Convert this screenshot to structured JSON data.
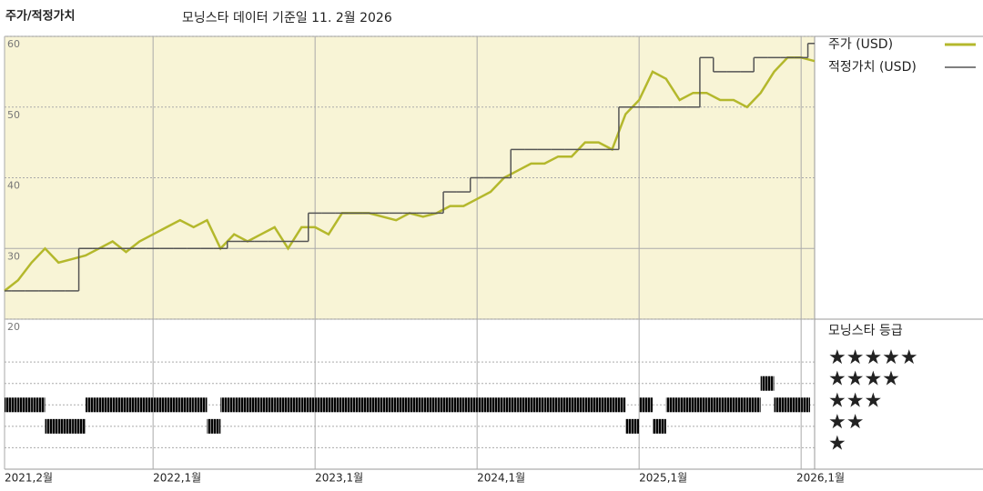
{
  "title": "주가/적정가치",
  "subtitle": "모닝스타 데이터 기준일 11. 2월 2026",
  "chart_data": [
    {
      "type": "line",
      "x": [
        "2021-02",
        "2021-03",
        "2021-04",
        "2021-05",
        "2021-06",
        "2021-07",
        "2021-08",
        "2021-09",
        "2021-10",
        "2021-11",
        "2021-12",
        "2022-01",
        "2022-02",
        "2022-03",
        "2022-04",
        "2022-05",
        "2022-06",
        "2022-07",
        "2022-08",
        "2022-09",
        "2022-10",
        "2022-11",
        "2022-12",
        "2023-01",
        "2023-02",
        "2023-03",
        "2023-04",
        "2023-05",
        "2023-06",
        "2023-07",
        "2023-08",
        "2023-09",
        "2023-10",
        "2023-11",
        "2023-12",
        "2024-01",
        "2024-02",
        "2024-03",
        "2024-04",
        "2024-05",
        "2024-06",
        "2024-07",
        "2024-08",
        "2024-09",
        "2024-10",
        "2024-11",
        "2024-12",
        "2025-01",
        "2025-02",
        "2025-03",
        "2025-04",
        "2025-05",
        "2025-06",
        "2025-07",
        "2025-08",
        "2025-09",
        "2025-10",
        "2025-11",
        "2025-12",
        "2026-01",
        "2026-02"
      ],
      "series": [
        {
          "name": "주가 (USD)",
          "color": "#b4b82c",
          "values": [
            24,
            25.5,
            28,
            30,
            28,
            28.5,
            29,
            30,
            31,
            29.5,
            31,
            32,
            33,
            34,
            33,
            34,
            30,
            32,
            31,
            32,
            33,
            30,
            33,
            33,
            32,
            35,
            35,
            35,
            34.5,
            34,
            35,
            34.5,
            35,
            36,
            36,
            37,
            38,
            40,
            41,
            42,
            42,
            43,
            43,
            45,
            45,
            44,
            49,
            51,
            55,
            54,
            51,
            52,
            52,
            51,
            51,
            50,
            52,
            55,
            57,
            57,
            56.5
          ]
        },
        {
          "name": "적정가치 (USD)",
          "color": "#555555",
          "step": true,
          "values": [
            24,
            24,
            24,
            24,
            24,
            24,
            30,
            30,
            30,
            30,
            30,
            30,
            30,
            30,
            30,
            30,
            30,
            31,
            31,
            31,
            31,
            31,
            31,
            35,
            35,
            35,
            35,
            35,
            35,
            35,
            35,
            35,
            35,
            38,
            38,
            40,
            40,
            40,
            44,
            44,
            44,
            44,
            44,
            44,
            44,
            44,
            50,
            50,
            50,
            50,
            50,
            50,
            57,
            55,
            55,
            55,
            57,
            57,
            57,
            57,
            59
          ]
        }
      ],
      "xlim": [
        "2021-02",
        "2026-02"
      ],
      "xticks": [
        {
          "value": "2021-02",
          "label": "2021,2월"
        },
        {
          "value": "2022-01",
          "label": "2022,1월"
        },
        {
          "value": "2023-01",
          "label": "2023,1월"
        },
        {
          "value": "2024-01",
          "label": "2024,1월"
        },
        {
          "value": "2025-01",
          "label": "2025,1월"
        },
        {
          "value": "2026-01",
          "label": "2026,1월"
        }
      ],
      "ylim": [
        20,
        60
      ],
      "yticks": [
        20,
        30,
        40,
        50,
        60
      ],
      "grid": true
    },
    {
      "type": "rating",
      "title": "모닝스타 등급",
      "x": [
        "2021-02",
        "2021-03",
        "2021-04",
        "2021-05",
        "2021-06",
        "2021-07",
        "2021-08",
        "2021-09",
        "2021-10",
        "2021-11",
        "2021-12",
        "2022-01",
        "2022-02",
        "2022-03",
        "2022-04",
        "2022-05",
        "2022-06",
        "2022-07",
        "2022-08",
        "2022-09",
        "2022-10",
        "2022-11",
        "2022-12",
        "2023-01",
        "2023-02",
        "2023-03",
        "2023-04",
        "2023-05",
        "2023-06",
        "2023-07",
        "2023-08",
        "2023-09",
        "2023-10",
        "2023-11",
        "2023-12",
        "2024-01",
        "2024-02",
        "2024-03",
        "2024-04",
        "2024-05",
        "2024-06",
        "2024-07",
        "2024-08",
        "2024-09",
        "2024-10",
        "2024-11",
        "2024-12",
        "2025-01",
        "2025-02",
        "2025-03",
        "2025-04",
        "2025-05",
        "2025-06",
        "2025-07",
        "2025-08",
        "2025-09",
        "2025-10",
        "2025-11",
        "2025-12",
        "2026-01",
        "2026-02"
      ],
      "values": [
        3,
        3,
        3,
        2,
        2,
        2,
        3,
        3,
        3,
        3,
        3,
        3,
        3,
        3,
        3,
        2,
        3,
        3,
        3,
        3,
        3,
        3,
        3,
        3,
        3,
        3,
        3,
        3,
        3,
        3,
        3,
        3,
        3,
        3,
        3,
        3,
        3,
        3,
        3,
        3,
        3,
        3,
        3,
        3,
        3,
        3,
        2,
        3,
        2,
        3,
        3,
        3,
        3,
        3,
        3,
        3,
        4,
        3,
        3,
        3,
        3
      ],
      "ylim": [
        0,
        7
      ],
      "yticks": [
        {
          "value": 5,
          "label": "★★★★★"
        },
        {
          "value": 4,
          "label": "★★★★"
        },
        {
          "value": 3,
          "label": "★★★"
        },
        {
          "value": 2,
          "label": "★★"
        },
        {
          "value": 1,
          "label": "★"
        }
      ]
    }
  ]
}
